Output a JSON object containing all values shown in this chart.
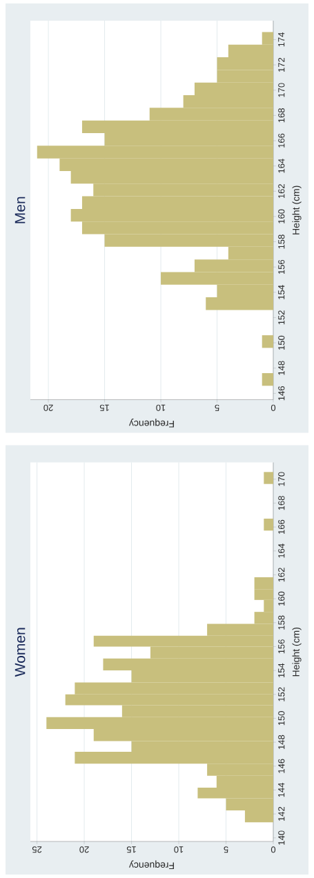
{
  "chart_data": [
    {
      "type": "histogram",
      "orientation": "horizontal",
      "title": "Women",
      "xlabel": "Frequency",
      "ylabel": "Height (cm)",
      "color": "#c8bf7d",
      "grid": "x",
      "bins": [
        141.3,
        142.3,
        143.3,
        144.2,
        145.2,
        146.2,
        147.2,
        148.1,
        149.1,
        150.1,
        151.1,
        152.0,
        153.0,
        154.0,
        155.0,
        156.0,
        156.9,
        157.9,
        158.9,
        159.9,
        160.8,
        161.8,
        165.7,
        166.7,
        169.6,
        170.6
      ],
      "values": [
        3,
        5,
        8,
        6,
        7,
        21,
        15,
        19,
        24,
        16,
        22,
        21,
        15,
        18,
        13,
        19,
        7,
        2,
        1,
        2,
        2,
        0,
        1,
        0,
        1
      ],
      "xlim": [
        25.7,
        0
      ],
      "ylim": [
        139.7,
        171.4
      ],
      "xticks": [
        25,
        20,
        15,
        10,
        5,
        0
      ],
      "yticks": [
        140,
        142,
        144,
        146,
        148,
        150,
        152,
        154,
        156,
        158,
        160,
        162,
        164,
        166,
        168,
        170
      ]
    },
    {
      "type": "histogram",
      "orientation": "horizontal",
      "title": "Men",
      "xlabel": "Frequency",
      "ylabel": "Height (cm)",
      "color": "#c8bf7d",
      "grid": "x",
      "bins": [
        146.6,
        147.6,
        149.6,
        150.6,
        152.6,
        153.6,
        154.6,
        155.6,
        156.6,
        157.6,
        158.6,
        159.6,
        160.6,
        161.6,
        162.6,
        163.6,
        164.6,
        165.6,
        166.6,
        167.6,
        168.6,
        169.6,
        170.6,
        171.6,
        172.6,
        173.6,
        174.6
      ],
      "values": [
        1,
        0,
        1,
        0,
        6,
        5,
        10,
        7,
        4,
        15,
        17,
        18,
        17,
        16,
        18,
        19,
        21,
        15,
        17,
        11,
        8,
        7,
        5,
        5,
        4,
        1
      ],
      "xlim": [
        21.6,
        0
      ],
      "ylim": [
        145.5,
        175.5
      ],
      "xticks": [
        20,
        15,
        10,
        5,
        0
      ],
      "yticks": [
        146,
        148,
        150,
        152,
        154,
        156,
        158,
        160,
        162,
        164,
        166,
        168,
        170,
        172,
        174
      ]
    }
  ]
}
